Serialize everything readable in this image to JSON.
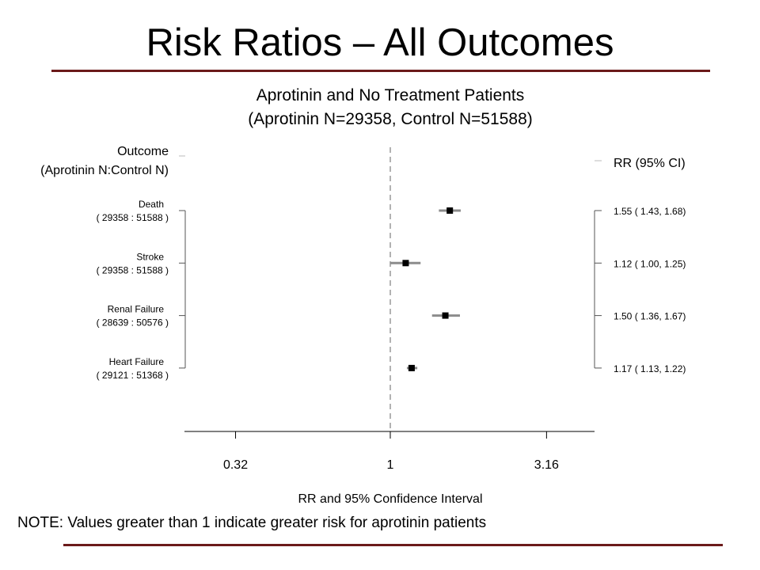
{
  "slide": {
    "title": "Risk Ratios – All Outcomes",
    "note": "NOTE: Values greater than 1 indicate greater risk for aprotinin patients"
  },
  "colors": {
    "accent_rule": "#6b1a1a",
    "ci_line": "#8c8c8c",
    "point": "#000000",
    "reference_line": "#999999"
  },
  "chart_data": {
    "type": "forest",
    "title": [
      "Aprotinin and No Treatment Patients",
      "(Aprotinin N=29358, Control N=51588)"
    ],
    "left_header": [
      "Outcome",
      "(Aprotinin N:Control N)"
    ],
    "right_header": "RR (95% CI)",
    "xlabel": "RR and 95% Confidence Interval",
    "xscale": "log",
    "xlim": [
      0.2,
      5.0
    ],
    "xticks": [
      0.32,
      1,
      3.16
    ],
    "xtick_labels": [
      "0.32",
      "1",
      "3.16"
    ],
    "reference_value": 1,
    "rows": [
      {
        "outcome": "Death",
        "counts": "( 29358  :  51588 )",
        "rr": 1.55,
        "lower": 1.43,
        "upper": 1.68,
        "label": "1.55 ( 1.43, 1.68)"
      },
      {
        "outcome": "Stroke",
        "counts": "( 29358  :  51588 )",
        "rr": 1.12,
        "lower": 1.0,
        "upper": 1.25,
        "label": "1.12 ( 1.00, 1.25)"
      },
      {
        "outcome": "Renal Failure",
        "counts": "( 28639  :  50576 )",
        "rr": 1.5,
        "lower": 1.36,
        "upper": 1.67,
        "label": "1.50 ( 1.36, 1.67)"
      },
      {
        "outcome": "Heart Failure",
        "counts": "( 29121  :  51368 )",
        "rr": 1.17,
        "lower": 1.13,
        "upper": 1.22,
        "label": "1.17 ( 1.13, 1.22)"
      }
    ]
  }
}
